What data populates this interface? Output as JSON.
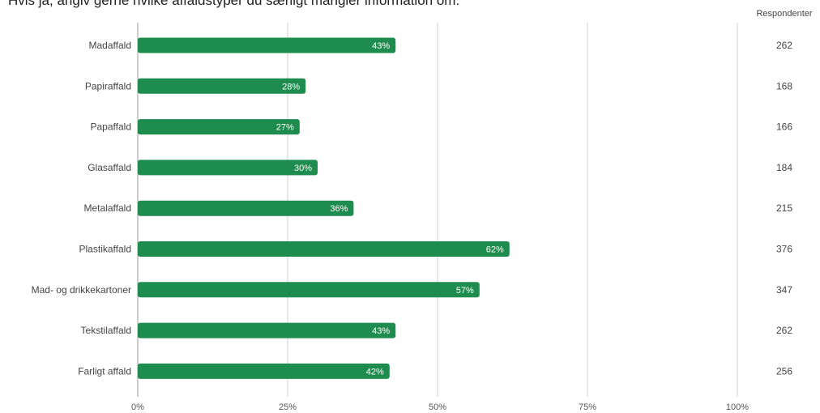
{
  "chart_data": {
    "type": "bar",
    "orientation": "horizontal",
    "title": "Hvis ja, angiv gerne hvilke affaldstyper du særligt mangler information om:",
    "categories": [
      "Madaffald",
      "Papiraffald",
      "Papaffald",
      "Glasaffald",
      "Metalaffald",
      "Plastikaffald",
      "Mad- og drikkekartoner",
      "Tekstilaffald",
      "Farligt affald"
    ],
    "values": [
      43,
      28,
      27,
      30,
      36,
      62,
      57,
      43,
      42
    ],
    "value_labels": [
      "43%",
      "28%",
      "27%",
      "30%",
      "36%",
      "62%",
      "57%",
      "43%",
      "42%"
    ],
    "respondents_header": "Respondenter",
    "respondents": [
      "262",
      "168",
      "166",
      "184",
      "215",
      "376",
      "347",
      "262",
      "256"
    ],
    "xlim": [
      0,
      100
    ],
    "xticks": [
      0,
      25,
      50,
      75,
      100
    ],
    "xtick_labels": [
      "0%",
      "25%",
      "50%",
      "75%",
      "100%"
    ],
    "grid": true,
    "bar_color": "#1e8c4e",
    "grid_color": "#d0d0d0"
  }
}
